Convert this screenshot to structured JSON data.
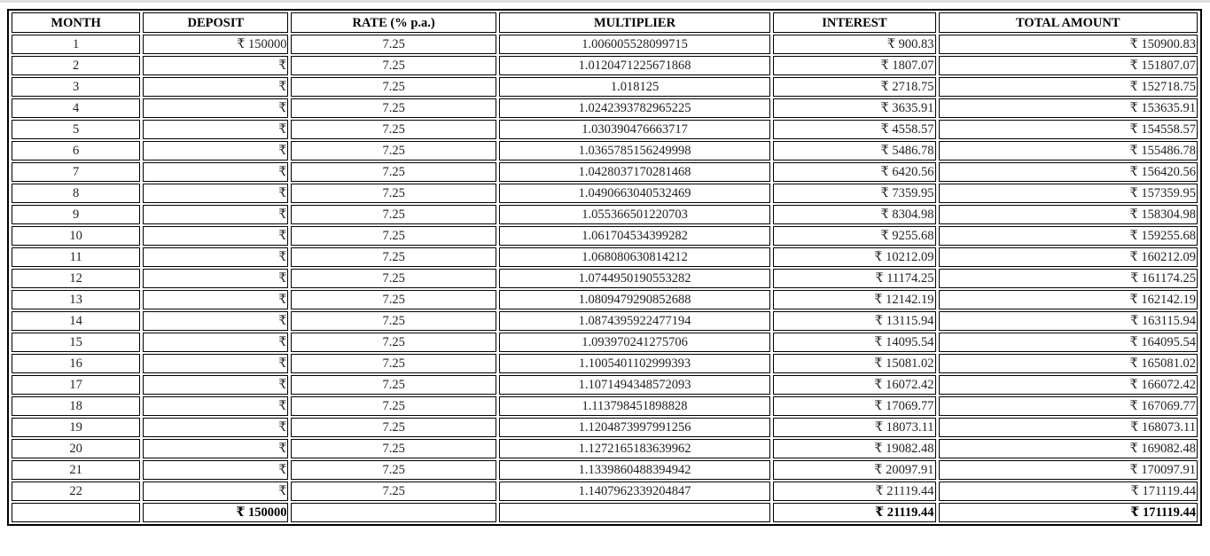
{
  "table": {
    "headers": [
      "MONTH",
      "DEPOSIT",
      "RATE (% p.a.)",
      "MULTIPLIER",
      "INTEREST",
      "TOTAL AMOUNT"
    ],
    "rows": [
      {
        "month": "1",
        "deposit": "₹ 150000",
        "rate": "7.25",
        "multiplier": "1.006005528099715",
        "interest": "₹ 900.83",
        "total": "₹ 150900.83"
      },
      {
        "month": "2",
        "deposit": "₹",
        "rate": "7.25",
        "multiplier": "1.0120471225671868",
        "interest": "₹ 1807.07",
        "total": "₹ 151807.07"
      },
      {
        "month": "3",
        "deposit": "₹",
        "rate": "7.25",
        "multiplier": "1.018125",
        "interest": "₹ 2718.75",
        "total": "₹ 152718.75"
      },
      {
        "month": "4",
        "deposit": "₹",
        "rate": "7.25",
        "multiplier": "1.0242393782965225",
        "interest": "₹ 3635.91",
        "total": "₹ 153635.91"
      },
      {
        "month": "5",
        "deposit": "₹",
        "rate": "7.25",
        "multiplier": "1.030390476663717",
        "interest": "₹ 4558.57",
        "total": "₹ 154558.57"
      },
      {
        "month": "6",
        "deposit": "₹",
        "rate": "7.25",
        "multiplier": "1.0365785156249998",
        "interest": "₹ 5486.78",
        "total": "₹ 155486.78"
      },
      {
        "month": "7",
        "deposit": "₹",
        "rate": "7.25",
        "multiplier": "1.0428037170281468",
        "interest": "₹ 6420.56",
        "total": "₹ 156420.56"
      },
      {
        "month": "8",
        "deposit": "₹",
        "rate": "7.25",
        "multiplier": "1.0490663040532469",
        "interest": "₹ 7359.95",
        "total": "₹ 157359.95"
      },
      {
        "month": "9",
        "deposit": "₹",
        "rate": "7.25",
        "multiplier": "1.055366501220703",
        "interest": "₹ 8304.98",
        "total": "₹ 158304.98"
      },
      {
        "month": "10",
        "deposit": "₹",
        "rate": "7.25",
        "multiplier": "1.061704534399282",
        "interest": "₹ 9255.68",
        "total": "₹ 159255.68"
      },
      {
        "month": "11",
        "deposit": "₹",
        "rate": "7.25",
        "multiplier": "1.068080630814212",
        "interest": "₹ 10212.09",
        "total": "₹ 160212.09"
      },
      {
        "month": "12",
        "deposit": "₹",
        "rate": "7.25",
        "multiplier": "1.074495019055328​2",
        "interest": "₹ 11174.25",
        "total": "₹ 161174.25"
      },
      {
        "month": "13",
        "deposit": "₹",
        "rate": "7.25",
        "multiplier": "1.0809479290852688",
        "interest": "₹ 12142.19",
        "total": "₹ 162142.19"
      },
      {
        "month": "14",
        "deposit": "₹",
        "rate": "7.25",
        "multiplier": "1.0874395922477194",
        "interest": "₹ 13115.94",
        "total": "₹ 163115.94"
      },
      {
        "month": "15",
        "deposit": "₹",
        "rate": "7.25",
        "multiplier": "1.093970241275706",
        "interest": "₹ 14095.54",
        "total": "₹ 164095.54"
      },
      {
        "month": "16",
        "deposit": "₹",
        "rate": "7.25",
        "multiplier": "1.1005401102999393",
        "interest": "₹ 15081.02",
        "total": "₹ 165081.02"
      },
      {
        "month": "17",
        "deposit": "₹",
        "rate": "7.25",
        "multiplier": "1.1071494348572093",
        "interest": "₹ 16072.42",
        "total": "₹ 166072.42"
      },
      {
        "month": "18",
        "deposit": "₹",
        "rate": "7.25",
        "multiplier": "1.113798451898828",
        "interest": "₹ 17069.77",
        "total": "₹ 167069.77"
      },
      {
        "month": "19",
        "deposit": "₹",
        "rate": "7.25",
        "multiplier": "1.1204873997991256",
        "interest": "₹ 18073.11",
        "total": "₹ 168073.11"
      },
      {
        "month": "20",
        "deposit": "₹",
        "rate": "7.25",
        "multiplier": "1.1272165183639962",
        "interest": "₹ 19082.48",
        "total": "₹ 169082.48"
      },
      {
        "month": "21",
        "deposit": "₹",
        "rate": "7.25",
        "multiplier": "1.1339860488394942",
        "interest": "₹ 20097.91",
        "total": "₹ 170097.91"
      },
      {
        "month": "22",
        "deposit": "₹",
        "rate": "7.25",
        "multiplier": "1.1407962339204847",
        "interest": "₹ 21119.44",
        "total": "₹ 171119.44"
      }
    ],
    "totals": {
      "month": "",
      "deposit": "₹ 150000",
      "rate": "",
      "multiplier": "",
      "interest": "₹ 21119.44",
      "total": "₹ 171119.44"
    }
  }
}
